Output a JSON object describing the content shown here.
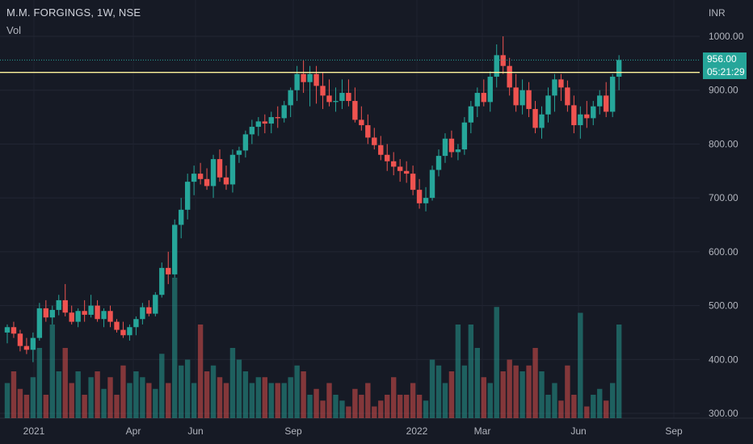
{
  "header": {
    "symbol_line": "M.M. FORGINGS, 1W, NSE",
    "volume_label": "Vol",
    "currency": "INR"
  },
  "price_tag": {
    "price": "956.00",
    "countdown": "05:21:29"
  },
  "colors": {
    "up": "#26a69a",
    "down": "#ef5350",
    "background": "#161a25",
    "level_line": "#fff59d"
  },
  "chart_data": {
    "type": "candlestick",
    "y_axis": {
      "ticks": [
        "1000.00",
        "900.00",
        "800.00",
        "700.00",
        "600.00",
        "500.00",
        "400.00",
        "300.00"
      ],
      "range": [
        300,
        1040
      ]
    },
    "x_axis": {
      "labels": [
        "2021",
        "Apr",
        "Jun",
        "Sep",
        "2022",
        "Mar",
        "Jun",
        "Sep"
      ]
    },
    "horizontal_level": 933,
    "current_price": 956,
    "volume_bars": 96,
    "candles": [
      [
        450,
        465,
        430,
        460
      ],
      [
        460,
        470,
        440,
        448
      ],
      [
        448,
        455,
        415,
        425
      ],
      [
        425,
        440,
        410,
        418
      ],
      [
        418,
        450,
        395,
        440
      ],
      [
        440,
        505,
        435,
        495
      ],
      [
        495,
        510,
        470,
        478
      ],
      [
        478,
        500,
        465,
        492
      ],
      [
        492,
        520,
        482,
        510
      ],
      [
        510,
        540,
        480,
        487
      ],
      [
        487,
        500,
        465,
        470
      ],
      [
        470,
        495,
        460,
        490
      ],
      [
        490,
        510,
        470,
        483
      ],
      [
        483,
        520,
        478,
        500
      ],
      [
        500,
        510,
        470,
        475
      ],
      [
        475,
        495,
        460,
        490
      ],
      [
        490,
        500,
        460,
        470
      ],
      [
        470,
        475,
        450,
        455
      ],
      [
        455,
        470,
        440,
        445
      ],
      [
        445,
        465,
        435,
        460
      ],
      [
        460,
        480,
        445,
        475
      ],
      [
        475,
        505,
        465,
        497
      ],
      [
        497,
        510,
        480,
        485
      ],
      [
        485,
        525,
        480,
        520
      ],
      [
        520,
        580,
        515,
        570
      ],
      [
        570,
        600,
        540,
        558
      ],
      [
        558,
        660,
        552,
        650
      ],
      [
        650,
        700,
        625,
        678
      ],
      [
        678,
        745,
        660,
        730
      ],
      [
        730,
        760,
        705,
        745
      ],
      [
        745,
        765,
        725,
        735
      ],
      [
        735,
        755,
        715,
        722
      ],
      [
        722,
        780,
        700,
        772
      ],
      [
        772,
        790,
        730,
        738
      ],
      [
        738,
        760,
        715,
        725
      ],
      [
        725,
        790,
        710,
        780
      ],
      [
        780,
        795,
        765,
        788
      ],
      [
        788,
        825,
        775,
        818
      ],
      [
        818,
        845,
        800,
        832
      ],
      [
        832,
        850,
        815,
        842
      ],
      [
        842,
        855,
        820,
        838
      ],
      [
        838,
        860,
        820,
        850
      ],
      [
        850,
        870,
        830,
        848
      ],
      [
        848,
        880,
        840,
        872
      ],
      [
        872,
        905,
        850,
        900
      ],
      [
        900,
        945,
        880,
        930
      ],
      [
        930,
        955,
        895,
        915
      ],
      [
        915,
        945,
        870,
        930
      ],
      [
        930,
        945,
        875,
        908
      ],
      [
        908,
        932,
        865,
        890
      ],
      [
        890,
        920,
        870,
        878
      ],
      [
        878,
        905,
        860,
        880
      ],
      [
        880,
        920,
        865,
        895
      ],
      [
        895,
        920,
        870,
        880
      ],
      [
        880,
        905,
        840,
        845
      ],
      [
        845,
        870,
        825,
        835
      ],
      [
        835,
        855,
        800,
        812
      ],
      [
        812,
        830,
        790,
        798
      ],
      [
        798,
        815,
        770,
        780
      ],
      [
        780,
        800,
        750,
        768
      ],
      [
        768,
        785,
        742,
        758
      ],
      [
        758,
        772,
        730,
        750
      ],
      [
        750,
        768,
        728,
        745
      ],
      [
        745,
        760,
        705,
        715
      ],
      [
        715,
        735,
        680,
        690
      ],
      [
        690,
        720,
        675,
        700
      ],
      [
        700,
        760,
        695,
        752
      ],
      [
        752,
        790,
        740,
        778
      ],
      [
        778,
        820,
        765,
        810
      ],
      [
        810,
        825,
        775,
        785
      ],
      [
        785,
        800,
        770,
        790
      ],
      [
        790,
        850,
        780,
        840
      ],
      [
        840,
        880,
        820,
        870
      ],
      [
        870,
        905,
        850,
        895
      ],
      [
        895,
        920,
        870,
        878
      ],
      [
        878,
        935,
        860,
        925
      ],
      [
        925,
        985,
        905,
        965
      ],
      [
        965,
        1000,
        930,
        945
      ],
      [
        945,
        960,
        890,
        905
      ],
      [
        905,
        930,
        860,
        872
      ],
      [
        872,
        920,
        855,
        900
      ],
      [
        900,
        915,
        850,
        865
      ],
      [
        865,
        880,
        820,
        830
      ],
      [
        830,
        870,
        810,
        855
      ],
      [
        855,
        905,
        840,
        890
      ],
      [
        890,
        930,
        860,
        920
      ],
      [
        920,
        930,
        880,
        905
      ],
      [
        905,
        918,
        860,
        872
      ],
      [
        872,
        890,
        820,
        835
      ],
      [
        835,
        870,
        810,
        855
      ],
      [
        855,
        880,
        830,
        848
      ],
      [
        848,
        880,
        835,
        870
      ],
      [
        870,
        900,
        855,
        890
      ],
      [
        890,
        915,
        850,
        860
      ],
      [
        860,
        930,
        850,
        925
      ],
      [
        925,
        965,
        900,
        956
      ]
    ],
    "volumes": [
      330,
      340,
      325,
      320,
      335,
      360,
      320,
      380,
      340,
      360,
      330,
      340,
      320,
      335,
      340,
      325,
      335,
      320,
      345,
      330,
      340,
      335,
      330,
      325,
      355,
      330,
      420,
      345,
      350,
      330,
      380,
      340,
      345,
      335,
      330,
      360,
      350,
      340,
      330,
      335,
      335,
      330,
      330,
      330,
      335,
      345,
      340,
      320,
      325,
      315,
      330,
      320,
      315,
      310,
      325,
      320,
      330,
      310,
      315,
      320,
      335,
      320,
      320,
      330,
      320,
      315,
      350,
      345,
      330,
      340,
      380,
      345,
      380,
      360,
      335,
      330,
      395,
      340,
      350,
      345,
      340,
      345,
      360,
      340,
      320,
      330,
      315,
      345,
      320,
      390,
      310,
      320,
      325,
      315,
      330,
      380
    ]
  }
}
